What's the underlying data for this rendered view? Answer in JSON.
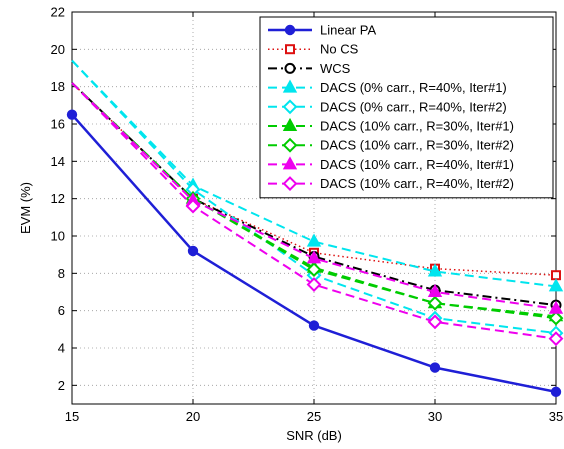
{
  "chart_data": {
    "type": "line",
    "title": "",
    "xlabel": "SNR (dB)",
    "ylabel": "EVM (%)",
    "xlim": [
      15,
      35
    ],
    "ylim": [
      1,
      22
    ],
    "xticks": [
      15,
      20,
      25,
      30,
      35
    ],
    "yticks": [
      2,
      4,
      6,
      8,
      10,
      12,
      14,
      16,
      18,
      20,
      22
    ],
    "grid": true,
    "legend_position": "top-right",
    "series": [
      {
        "name": "Linear PA",
        "color": "#1f1fd6",
        "dash": "solid",
        "marker": "circle-filled",
        "width": 2.5,
        "x": [
          15,
          20,
          25,
          30,
          35
        ],
        "y": [
          16.5,
          9.2,
          5.2,
          2.95,
          1.65
        ]
      },
      {
        "name": "No CS",
        "color": "#dd1111",
        "dash": "dot",
        "marker": "square-open",
        "width": 1.5,
        "x": [
          15,
          20,
          25,
          30,
          35
        ],
        "y": [
          18.2,
          12.0,
          9.1,
          8.25,
          7.9
        ]
      },
      {
        "name": "WCS",
        "color": "#000000",
        "dash": "dashdot",
        "marker": "circle-open",
        "width": 2,
        "x": [
          15,
          20,
          25,
          30,
          35
        ],
        "y": [
          18.2,
          12.0,
          8.9,
          7.1,
          6.3
        ]
      },
      {
        "name": "DACS (0% carr., R=40%, Iter#1)",
        "color": "#00e5ee",
        "dash": "dash",
        "marker": "triangle-filled",
        "width": 2,
        "x": [
          15,
          20,
          25,
          30,
          35
        ],
        "y": [
          19.4,
          12.7,
          9.7,
          8.1,
          7.3
        ]
      },
      {
        "name": "DACS (0% carr., R=40%, Iter#2)",
        "color": "#00e5ee",
        "dash": "dash",
        "marker": "diamond-open",
        "width": 2,
        "x": [
          15,
          20,
          25,
          30,
          35
        ],
        "y": [
          19.4,
          12.5,
          7.9,
          5.6,
          4.8
        ]
      },
      {
        "name": "DACS (10% carr., R=30%, Iter#1)",
        "color": "#00cc00",
        "dash": "dash",
        "marker": "triangle-filled",
        "width": 2,
        "x": [
          15,
          20,
          25,
          30,
          35
        ],
        "y": [
          18.2,
          12.0,
          8.3,
          6.4,
          5.7
        ]
      },
      {
        "name": "DACS (10% carr., R=30%, Iter#2)",
        "color": "#00cc00",
        "dash": "dash",
        "marker": "diamond-open",
        "width": 2,
        "x": [
          15,
          20,
          25,
          30,
          35
        ],
        "y": [
          18.2,
          12.0,
          8.2,
          6.4,
          5.6
        ]
      },
      {
        "name": "DACS (10% carr., R=40%, Iter#1)",
        "color": "#ee00ee",
        "dash": "dash",
        "marker": "triangle-filled",
        "width": 2,
        "x": [
          15,
          20,
          25,
          30,
          35
        ],
        "y": [
          18.2,
          11.9,
          8.8,
          7.0,
          6.1
        ]
      },
      {
        "name": "DACS (10% carr., R=40%, Iter#2)",
        "color": "#ee00ee",
        "dash": "dash",
        "marker": "diamond-open",
        "width": 2,
        "x": [
          15,
          20,
          25,
          30,
          35
        ],
        "y": [
          18.2,
          11.6,
          7.4,
          5.4,
          4.5
        ]
      }
    ]
  }
}
